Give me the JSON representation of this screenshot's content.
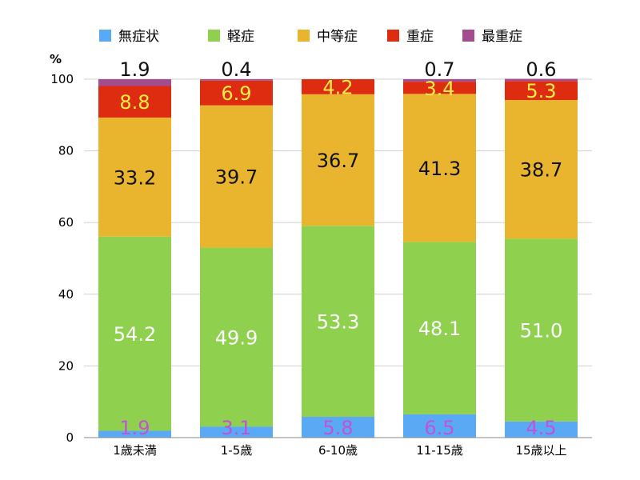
{
  "chart_data": {
    "type": "bar",
    "stacked": true,
    "unit": "%",
    "categories": [
      "1歳未満",
      "1-5歳",
      "6-10歳",
      "11-15歳",
      "15歳以上"
    ],
    "series": [
      {
        "name": "無症状",
        "color": "#5aa9f4",
        "label_color": "#c053d6",
        "values": [
          1.9,
          3.1,
          5.8,
          6.5,
          4.5
        ],
        "labels": [
          "1.9",
          "3.1",
          "5.8",
          "6.5",
          "4.5"
        ]
      },
      {
        "name": "軽症",
        "color": "#8fd14f",
        "label_color": "#ffffff",
        "values": [
          54.2,
          49.9,
          53.3,
          48.1,
          51.0
        ],
        "labels": [
          "54.2",
          "49.9",
          "53.3",
          "48.1",
          "51.0"
        ]
      },
      {
        "name": "中等症",
        "color": "#e9b52f",
        "label_color": "#111111",
        "values": [
          33.2,
          39.7,
          36.7,
          41.3,
          38.7
        ],
        "labels": [
          "33.2",
          "39.7",
          "36.7",
          "41.3",
          "38.7"
        ]
      },
      {
        "name": "重症",
        "color": "#dd2c0f",
        "label_color": "#ffee44",
        "values": [
          8.8,
          6.9,
          4.2,
          3.4,
          5.3
        ],
        "labels": [
          "8.8",
          "6.9",
          "4.2",
          "3.4",
          "5.3"
        ]
      },
      {
        "name": "最重症",
        "color": "#a34d8e",
        "label_color": "#111111",
        "values": [
          1.9,
          0.4,
          0.0,
          0.7,
          0.6
        ],
        "labels": [
          "1.9",
          "0.4",
          "",
          "0.7",
          "0.6"
        ]
      }
    ],
    "yticks": [
      0,
      20,
      40,
      60,
      80,
      100
    ],
    "ylim": [
      0,
      100
    ],
    "grid": true,
    "legend": "top"
  }
}
